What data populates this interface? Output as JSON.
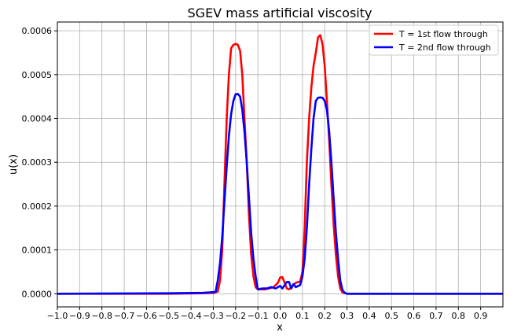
{
  "chart_data": {
    "type": "line",
    "title": "SGEV mass artificial viscosity",
    "xlabel": "x",
    "ylabel": "u(x)",
    "xlim": [
      -1.0,
      1.0
    ],
    "ylim": [
      -3e-05,
      0.00062
    ],
    "xticks": [
      -1.0,
      -0.9,
      -0.8,
      -0.7,
      -0.6,
      -0.5,
      -0.4,
      -0.3,
      -0.2,
      -0.1,
      0.0,
      0.1,
      0.2,
      0.3,
      0.4,
      0.5,
      0.6,
      0.7,
      0.8,
      0.9
    ],
    "xtick_labels": [
      "−1.0",
      "−0.9",
      "−0.8",
      "−0.7",
      "−0.6",
      "−0.5",
      "−0.4",
      "−0.3",
      "−0.2",
      "−0.1",
      "0.0",
      "0.1",
      "0.2",
      "0.3",
      "0.4",
      "0.5",
      "0.6",
      "0.7",
      "0.8",
      "0.9"
    ],
    "yticks": [
      0.0,
      0.0001,
      0.0002,
      0.0003,
      0.0004,
      0.0005,
      0.0006
    ],
    "ytick_labels": [
      "0.0000",
      "0.0001",
      "0.0002",
      "0.0003",
      "0.0004",
      "0.0005",
      "0.0006"
    ],
    "grid": true,
    "legend_position": "top-right",
    "series": [
      {
        "name": "T = 1st flow through",
        "color": "#ff0000",
        "points": [
          [
            -1.0,
            0.0
          ],
          [
            -0.5,
            0.0
          ],
          [
            -0.35,
            1e-06
          ],
          [
            -0.3,
            2e-06
          ],
          [
            -0.28,
            5e-06
          ],
          [
            -0.27,
            3e-05
          ],
          [
            -0.26,
            0.0001
          ],
          [
            -0.25,
            0.00025
          ],
          [
            -0.24,
            0.0004
          ],
          [
            -0.23,
            0.0005
          ],
          [
            -0.22,
            0.00056
          ],
          [
            -0.21,
            0.000568
          ],
          [
            -0.2,
            0.00057
          ],
          [
            -0.19,
            0.000568
          ],
          [
            -0.18,
            0.000555
          ],
          [
            -0.17,
            0.0005
          ],
          [
            -0.16,
            0.0004
          ],
          [
            -0.15,
            0.0003
          ],
          [
            -0.14,
            0.00018
          ],
          [
            -0.13,
            9e-05
          ],
          [
            -0.12,
            4e-05
          ],
          [
            -0.11,
            1.5e-05
          ],
          [
            -0.1,
            1e-05
          ],
          [
            -0.07,
            1e-05
          ],
          [
            -0.05,
            1.2e-05
          ],
          [
            -0.03,
            1.5e-05
          ],
          [
            -0.01,
            2.5e-05
          ],
          [
            0.0,
            3.7e-05
          ],
          [
            0.01,
            3.8e-05
          ],
          [
            0.02,
            2.5e-05
          ],
          [
            0.03,
            1.2e-05
          ],
          [
            0.04,
            1e-05
          ],
          [
            0.05,
            1.5e-05
          ],
          [
            0.07,
            2.5e-05
          ],
          [
            0.09,
            2.8e-05
          ],
          [
            0.1,
            5e-05
          ],
          [
            0.11,
            0.00015
          ],
          [
            0.12,
            0.0003
          ],
          [
            0.13,
            0.0004
          ],
          [
            0.14,
            0.00047
          ],
          [
            0.15,
            0.00052
          ],
          [
            0.16,
            0.00055
          ],
          [
            0.17,
            0.000585
          ],
          [
            0.18,
            0.00059
          ],
          [
            0.19,
            0.00057
          ],
          [
            0.2,
            0.00052
          ],
          [
            0.21,
            0.00044
          ],
          [
            0.22,
            0.00035
          ],
          [
            0.23,
            0.00025
          ],
          [
            0.24,
            0.00016
          ],
          [
            0.25,
            9e-05
          ],
          [
            0.26,
            4e-05
          ],
          [
            0.27,
            1.2e-05
          ],
          [
            0.28,
            3e-06
          ],
          [
            0.3,
            0.0
          ],
          [
            0.5,
            0.0
          ],
          [
            1.0,
            0.0
          ]
        ]
      },
      {
        "name": "T = 2nd flow through",
        "color": "#0000ff",
        "points": [
          [
            -1.0,
            0.0
          ],
          [
            -0.5,
            1e-06
          ],
          [
            -0.35,
            2e-06
          ],
          [
            -0.29,
            4e-06
          ],
          [
            -0.28,
            3e-05
          ],
          [
            -0.27,
            7e-05
          ],
          [
            -0.26,
            0.00013
          ],
          [
            -0.25,
            0.00021
          ],
          [
            -0.24,
            0.00029
          ],
          [
            -0.23,
            0.00036
          ],
          [
            -0.22,
            0.00041
          ],
          [
            -0.21,
            0.00044
          ],
          [
            -0.2,
            0.000455
          ],
          [
            -0.19,
            0.000456
          ],
          [
            -0.18,
            0.00045
          ],
          [
            -0.17,
            0.00042
          ],
          [
            -0.16,
            0.00037
          ],
          [
            -0.15,
            0.0003
          ],
          [
            -0.14,
            0.00022
          ],
          [
            -0.13,
            0.00014
          ],
          [
            -0.12,
            8e-05
          ],
          [
            -0.11,
            4e-05
          ],
          [
            -0.1,
            1e-05
          ],
          [
            -0.08,
            1.2e-05
          ],
          [
            -0.06,
            1.2e-05
          ],
          [
            -0.04,
            1.5e-05
          ],
          [
            -0.02,
            1.2e-05
          ],
          [
            0.0,
            1.8e-05
          ],
          [
            0.01,
            1.2e-05
          ],
          [
            0.03,
            2.7e-05
          ],
          [
            0.04,
            2.7e-05
          ],
          [
            0.05,
            1.2e-05
          ],
          [
            0.06,
            2.2e-05
          ],
          [
            0.07,
            1.5e-05
          ],
          [
            0.09,
            2e-05
          ],
          [
            0.1,
            4e-05
          ],
          [
            0.11,
            8e-05
          ],
          [
            0.12,
            0.00015
          ],
          [
            0.13,
            0.00025
          ],
          [
            0.14,
            0.00033
          ],
          [
            0.15,
            0.0004
          ],
          [
            0.16,
            0.00044
          ],
          [
            0.17,
            0.000447
          ],
          [
            0.18,
            0.000448
          ],
          [
            0.19,
            0.000447
          ],
          [
            0.2,
            0.00044
          ],
          [
            0.21,
            0.00042
          ],
          [
            0.22,
            0.00037
          ],
          [
            0.23,
            0.0003
          ],
          [
            0.24,
            0.00022
          ],
          [
            0.25,
            0.00014
          ],
          [
            0.26,
            8e-05
          ],
          [
            0.27,
            3e-05
          ],
          [
            0.28,
            8e-06
          ],
          [
            0.29,
            2e-06
          ],
          [
            0.3,
            0.0
          ],
          [
            1.0,
            0.0
          ]
        ]
      }
    ]
  }
}
